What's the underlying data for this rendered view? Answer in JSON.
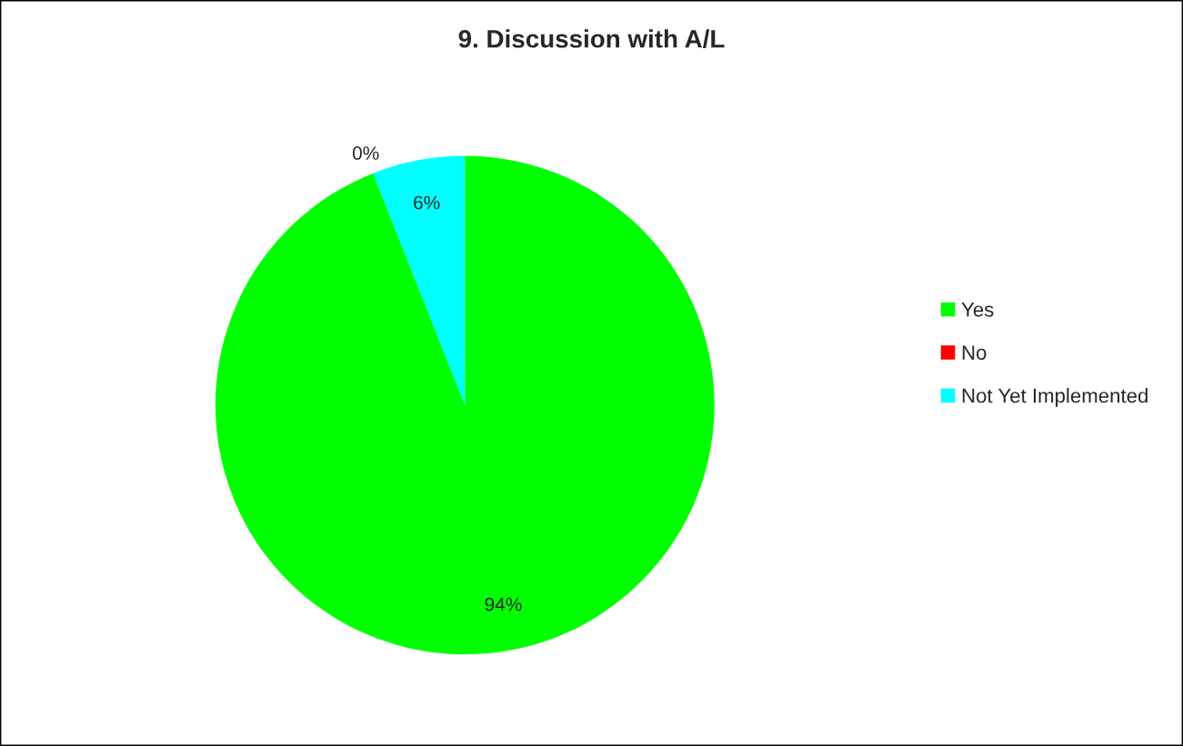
{
  "chart_data": {
    "type": "pie",
    "title": "9. Discussion with A/L",
    "categories": [
      "Yes",
      "No",
      "Not Yet Implemented"
    ],
    "values": [
      94,
      0,
      6
    ],
    "colors": [
      "#00ff00",
      "#ff0000",
      "#00ffff"
    ],
    "value_labels": [
      "94%",
      "0%",
      "6%"
    ],
    "legend": "right"
  }
}
